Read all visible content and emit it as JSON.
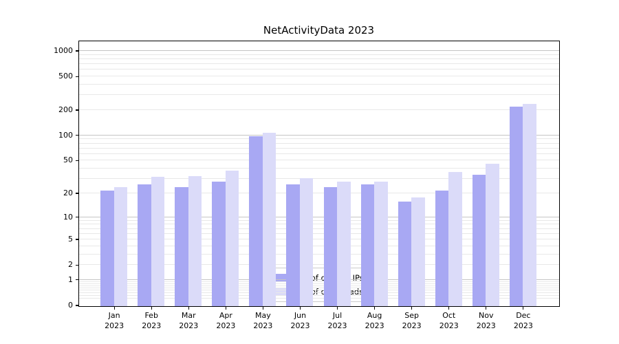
{
  "figure": {
    "title": "NetActivityData 2023"
  },
  "chart_data": {
    "type": "bar",
    "title": "NetActivityData 2023",
    "categories": [
      "Jan",
      "Feb",
      "Mar",
      "Apr",
      "May",
      "Jun",
      "Jul",
      "Aug",
      "Sep",
      "Oct",
      "Nov",
      "Dec"
    ],
    "year_label": "2023",
    "series": [
      {
        "name": "Nb of distinct IPs",
        "color": "#a8a8f3",
        "values": [
          22,
          26,
          24,
          28,
          98,
          26,
          24,
          26,
          16,
          22,
          34,
          220
        ]
      },
      {
        "name": "Nb of downloads",
        "color": "#dbdbf9",
        "values": [
          24,
          32,
          33,
          38,
          108,
          31,
          28,
          28,
          18,
          37,
          46,
          240
        ]
      }
    ],
    "xlabel": "",
    "ylabel": "",
    "yscale": "log1p",
    "y_ticks": [
      0,
      1,
      2,
      5,
      10,
      20,
      50,
      100,
      200,
      500,
      1000
    ],
    "ylim": [
      0,
      1300
    ],
    "grid": "both",
    "grid_major_color": "#c4c4c4",
    "grid_minor_color": "#e8e8e8",
    "legend_position": "lower center"
  }
}
